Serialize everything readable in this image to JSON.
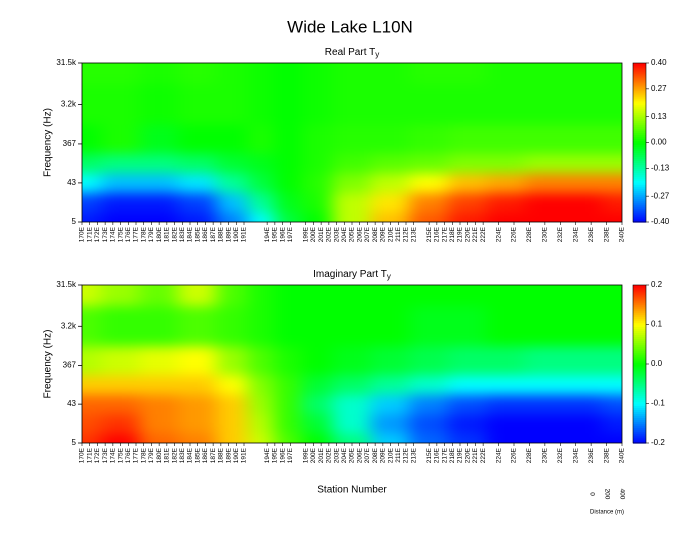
{
  "title": "Wide Lake L10N",
  "chart_data": [
    {
      "type": "heatmap",
      "title": "Real Part T",
      "title_sub": "y",
      "y_label": "Frequency (Hz)",
      "log_y": true,
      "colormap": [
        "#0000ff",
        "#00ffff",
        "#00ff00",
        "#ffff00",
        "#ff0000"
      ],
      "x": [
        170,
        175,
        180,
        185,
        190,
        193,
        197,
        200,
        205,
        210,
        215,
        220,
        225,
        230,
        235,
        240
      ],
      "y": [
        5,
        15,
        43,
        130,
        367,
        3200,
        31500
      ],
      "z": [
        [
          -0.38,
          -0.4,
          -0.4,
          -0.38,
          -0.3,
          -0.2,
          -0.05,
          0.0,
          0.15,
          0.25,
          0.33,
          0.38,
          0.4,
          0.4,
          0.4,
          0.4
        ],
        [
          -0.35,
          -0.38,
          -0.38,
          -0.35,
          -0.25,
          -0.12,
          -0.02,
          0.02,
          0.15,
          0.22,
          0.3,
          0.35,
          0.38,
          0.4,
          0.4,
          0.38
        ],
        [
          -0.2,
          -0.25,
          -0.25,
          -0.22,
          -0.12,
          -0.05,
          0.0,
          0.03,
          0.1,
          0.15,
          0.2,
          0.25,
          0.27,
          0.3,
          0.3,
          0.3
        ],
        [
          -0.08,
          -0.1,
          -0.1,
          -0.08,
          -0.04,
          -0.02,
          0.0,
          0.02,
          0.05,
          0.07,
          0.08,
          0.1,
          0.1,
          0.12,
          0.12,
          0.12
        ],
        [
          0.0,
          0.02,
          -0.02,
          0.0,
          0.0,
          0.02,
          0.0,
          0.02,
          0.03,
          0.03,
          0.04,
          0.05,
          0.05,
          0.05,
          0.05,
          0.05
        ],
        [
          0.02,
          0.02,
          0.01,
          0.02,
          0.02,
          0.01,
          0.0,
          0.01,
          0.02,
          0.02,
          0.02,
          0.02,
          0.02,
          0.02,
          0.02,
          0.02
        ],
        [
          0.03,
          0.03,
          0.02,
          0.03,
          0.02,
          0.01,
          0.0,
          0.01,
          0.02,
          0.02,
          0.03,
          0.03,
          0.02,
          0.02,
          0.02,
          0.02
        ]
      ],
      "xlim": [
        170,
        240
      ],
      "ylim": [
        5,
        31500
      ],
      "yticks": [
        5,
        43,
        367,
        {
          "value": 3200,
          "label": "3.2k"
        },
        {
          "value": 31500,
          "label": "31.5k"
        }
      ],
      "zlim": [
        -0.4,
        0.4
      ],
      "zticks": [
        {
          "value": 0.4,
          "label": "0.40"
        },
        0.27,
        0.13,
        {
          "value": 0,
          "label": "0.00"
        },
        -0.13,
        -0.27,
        {
          "value": -0.4,
          "label": "-0.40"
        }
      ],
      "xticks": [
        {
          "value": 170,
          "label": "170E"
        },
        {
          "value": 171,
          "label": "171E"
        },
        {
          "value": 172,
          "label": "172E"
        },
        {
          "value": 173,
          "label": "173E"
        },
        {
          "value": 174,
          "label": "174E"
        },
        {
          "value": 175,
          "label": "175E"
        },
        {
          "value": 176,
          "label": "176E"
        },
        {
          "value": 177,
          "label": "177E"
        },
        {
          "value": 178,
          "label": "178E"
        },
        {
          "value": 179,
          "label": "179E"
        },
        {
          "value": 180,
          "label": "180E"
        },
        {
          "value": 181,
          "label": "181E"
        },
        {
          "value": 182,
          "label": "182E"
        },
        {
          "value": 183,
          "label": "183E"
        },
        {
          "value": 184,
          "label": "184E"
        },
        {
          "value": 185,
          "label": "185E"
        },
        {
          "value": 186,
          "label": "186E"
        },
        {
          "value": 187,
          "label": "187E"
        },
        {
          "value": 188,
          "label": "188E"
        },
        {
          "value": 189,
          "label": "189E"
        },
        {
          "value": 190,
          "label": "190E"
        },
        {
          "value": 191,
          "label": "191E"
        },
        {
          "value": 194,
          "label": "194E"
        },
        {
          "value": 195,
          "label": "195E"
        },
        {
          "value": 196,
          "label": "196E"
        },
        {
          "value": 197,
          "label": "197E"
        },
        {
          "value": 199,
          "label": "199E"
        },
        {
          "value": 200,
          "label": "200E"
        },
        {
          "value": 201,
          "label": "201E"
        },
        {
          "value": 202,
          "label": "202E"
        },
        {
          "value": 203,
          "label": "203E"
        },
        {
          "value": 204,
          "label": "204E"
        },
        {
          "value": 205,
          "label": "205E"
        },
        {
          "value": 206,
          "label": "206E"
        },
        {
          "value": 207,
          "label": "207E"
        },
        {
          "value": 208,
          "label": "208E"
        },
        {
          "value": 209,
          "label": "209E"
        },
        {
          "value": 210,
          "label": "210E"
        },
        {
          "value": 211,
          "label": "211E"
        },
        {
          "value": 212,
          "label": "212E"
        },
        {
          "value": 213,
          "label": "213E"
        },
        {
          "value": 215,
          "label": "215E"
        },
        {
          "value": 216,
          "label": "216E"
        },
        {
          "value": 217,
          "label": "217E"
        },
        {
          "value": 218,
          "label": "218E"
        },
        {
          "value": 219,
          "label": "219E"
        },
        {
          "value": 220,
          "label": "220E"
        },
        {
          "value": 221,
          "label": "221E"
        },
        {
          "value": 222,
          "label": "222E"
        },
        {
          "value": 224,
          "label": "224E"
        },
        {
          "value": 226,
          "label": "226E"
        },
        {
          "value": 228,
          "label": "228E"
        },
        {
          "value": 230,
          "label": "230E"
        },
        {
          "value": 232,
          "label": "232E"
        },
        {
          "value": 234,
          "label": "234E"
        },
        {
          "value": 236,
          "label": "236E"
        },
        {
          "value": 238,
          "label": "238E"
        },
        {
          "value": 240,
          "label": "240E"
        }
      ]
    },
    {
      "type": "heatmap",
      "title": "Imaginary Part T",
      "title_sub": "y",
      "y_label": "Frequency (Hz)",
      "x_label": "Station Number",
      "log_y": true,
      "colormap": [
        "#0000ff",
        "#00ffff",
        "#00ff00",
        "#ffff00",
        "#ff0000"
      ],
      "x": [
        170,
        175,
        180,
        185,
        190,
        193,
        197,
        200,
        205,
        210,
        215,
        220,
        225,
        230,
        235,
        240
      ],
      "y": [
        5,
        15,
        43,
        130,
        367,
        3200,
        31500
      ],
      "z": [
        [
          0.18,
          0.2,
          0.16,
          0.15,
          0.12,
          0.08,
          0.03,
          0.0,
          -0.05,
          -0.12,
          -0.16,
          -0.18,
          -0.2,
          -0.2,
          -0.2,
          -0.2
        ],
        [
          0.17,
          0.18,
          0.15,
          0.14,
          0.12,
          0.07,
          0.02,
          -0.02,
          -0.08,
          -0.14,
          -0.17,
          -0.19,
          -0.2,
          -0.2,
          -0.2,
          -0.19
        ],
        [
          0.16,
          0.16,
          0.15,
          0.14,
          0.12,
          0.06,
          0.02,
          -0.04,
          -0.08,
          -0.12,
          -0.15,
          -0.17,
          -0.18,
          -0.18,
          -0.18,
          -0.17
        ],
        [
          0.12,
          0.12,
          0.12,
          0.12,
          0.1,
          0.05,
          0.02,
          -0.02,
          -0.04,
          -0.06,
          -0.08,
          -0.1,
          -0.1,
          -0.1,
          -0.1,
          -0.1
        ],
        [
          0.07,
          0.08,
          0.09,
          0.1,
          0.06,
          0.03,
          0.01,
          0.0,
          -0.01,
          -0.02,
          -0.03,
          -0.04,
          -0.04,
          -0.05,
          -0.05,
          -0.05
        ],
        [
          0.03,
          0.02,
          0.02,
          0.03,
          0.02,
          0.01,
          0.0,
          0.0,
          0.0,
          0.0,
          -0.01,
          -0.01,
          0.0,
          0.0,
          0.0,
          0.0
        ],
        [
          0.08,
          0.06,
          0.04,
          0.08,
          0.03,
          0.01,
          0.0,
          0.0,
          0.0,
          0.0,
          0.0,
          0.0,
          0.0,
          0.0,
          0.0,
          0.0
        ]
      ],
      "xlim": [
        170,
        240
      ],
      "ylim": [
        5,
        31500
      ],
      "yticks": [
        5,
        43,
        367,
        {
          "value": 3200,
          "label": "3.2k"
        },
        {
          "value": 31500,
          "label": "31.5k"
        }
      ],
      "zlim": [
        -0.2,
        0.2
      ],
      "zticks": [
        0.2,
        0.1,
        {
          "value": 0,
          "label": "0.0"
        },
        -0.1,
        -0.2
      ],
      "xticks": [
        {
          "value": 170,
          "label": "170E"
        },
        {
          "value": 171,
          "label": "171E"
        },
        {
          "value": 172,
          "label": "172E"
        },
        {
          "value": 173,
          "label": "173E"
        },
        {
          "value": 174,
          "label": "174E"
        },
        {
          "value": 175,
          "label": "175E"
        },
        {
          "value": 176,
          "label": "176E"
        },
        {
          "value": 177,
          "label": "177E"
        },
        {
          "value": 178,
          "label": "178E"
        },
        {
          "value": 179,
          "label": "179E"
        },
        {
          "value": 180,
          "label": "180E"
        },
        {
          "value": 181,
          "label": "181E"
        },
        {
          "value": 182,
          "label": "182E"
        },
        {
          "value": 183,
          "label": "183E"
        },
        {
          "value": 184,
          "label": "184E"
        },
        {
          "value": 185,
          "label": "185E"
        },
        {
          "value": 186,
          "label": "186E"
        },
        {
          "value": 187,
          "label": "187E"
        },
        {
          "value": 188,
          "label": "188E"
        },
        {
          "value": 189,
          "label": "189E"
        },
        {
          "value": 190,
          "label": "190E"
        },
        {
          "value": 191,
          "label": "191E"
        },
        {
          "value": 194,
          "label": "194E"
        },
        {
          "value": 195,
          "label": "195E"
        },
        {
          "value": 196,
          "label": "196E"
        },
        {
          "value": 197,
          "label": "197E"
        },
        {
          "value": 199,
          "label": "199E"
        },
        {
          "value": 200,
          "label": "200E"
        },
        {
          "value": 201,
          "label": "201E"
        },
        {
          "value": 202,
          "label": "202E"
        },
        {
          "value": 203,
          "label": "203E"
        },
        {
          "value": 204,
          "label": "204E"
        },
        {
          "value": 205,
          "label": "205E"
        },
        {
          "value": 206,
          "label": "206E"
        },
        {
          "value": 207,
          "label": "207E"
        },
        {
          "value": 208,
          "label": "208E"
        },
        {
          "value": 209,
          "label": "209E"
        },
        {
          "value": 210,
          "label": "210E"
        },
        {
          "value": 211,
          "label": "211E"
        },
        {
          "value": 212,
          "label": "212E"
        },
        {
          "value": 213,
          "label": "213E"
        },
        {
          "value": 215,
          "label": "215E"
        },
        {
          "value": 216,
          "label": "216E"
        },
        {
          "value": 217,
          "label": "217E"
        },
        {
          "value": 218,
          "label": "218E"
        },
        {
          "value": 219,
          "label": "219E"
        },
        {
          "value": 220,
          "label": "220E"
        },
        {
          "value": 221,
          "label": "221E"
        },
        {
          "value": 222,
          "label": "222E"
        },
        {
          "value": 224,
          "label": "224E"
        },
        {
          "value": 226,
          "label": "226E"
        },
        {
          "value": 228,
          "label": "228E"
        },
        {
          "value": 230,
          "label": "230E"
        },
        {
          "value": 232,
          "label": "232E"
        },
        {
          "value": 234,
          "label": "234E"
        },
        {
          "value": 236,
          "label": "236E"
        },
        {
          "value": 238,
          "label": "238E"
        },
        {
          "value": 240,
          "label": "240E"
        }
      ],
      "scale_bar": {
        "ticks": [
          0,
          200,
          400
        ],
        "label": "Distance (m)"
      }
    }
  ]
}
